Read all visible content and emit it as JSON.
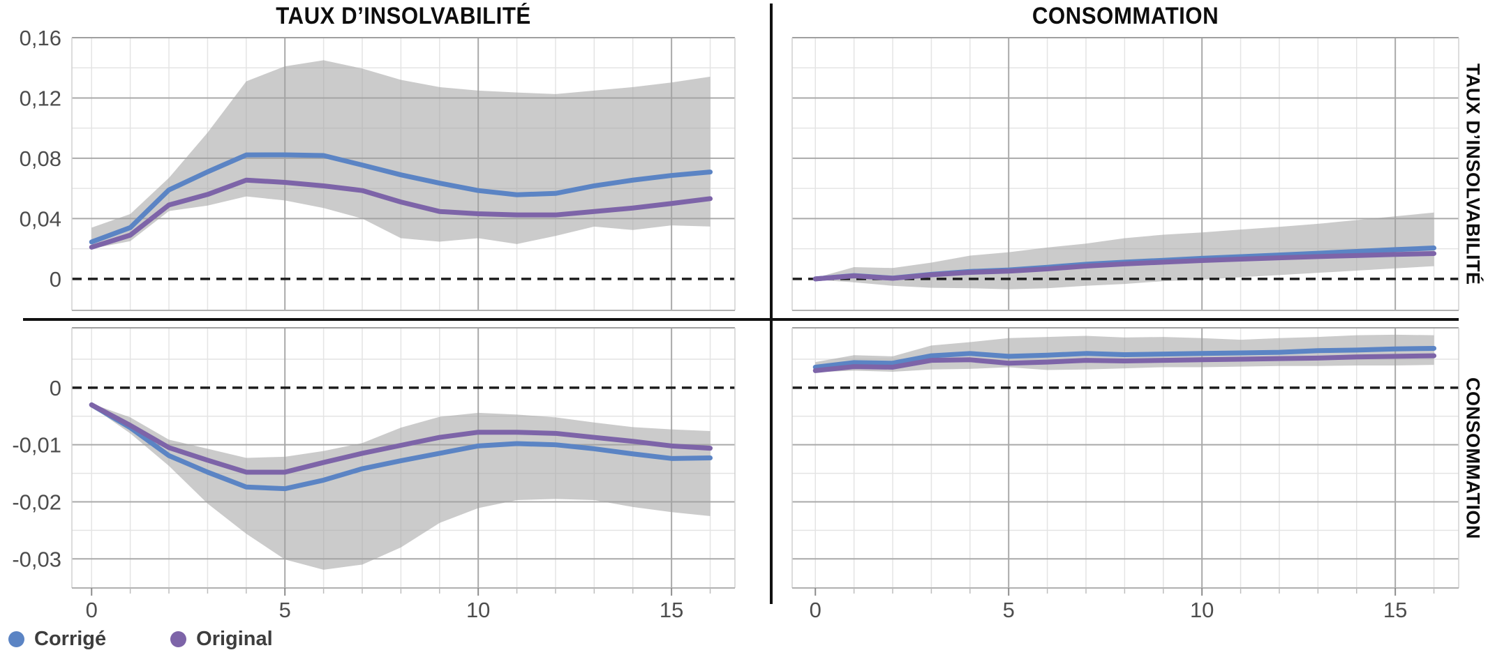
{
  "figure": {
    "columns": [
      "TAUX D’INSOLVABILITÉ",
      "CONSOMMATION"
    ],
    "rows": [
      "TAUX D’INSOLVABILITÉ",
      "CONSOMMATION"
    ]
  },
  "legend": {
    "items": [
      {
        "label": "Corrigé",
        "color": "#5b84c4"
      },
      {
        "label": "Original",
        "color": "#7d64a8"
      }
    ]
  },
  "style": {
    "background": "#ffffff",
    "band_color": "rgba(160,160,160,0.55)",
    "zero_line_color": "#1c1c1c",
    "grid_minor": "#e4e4e4",
    "grid_major": "#a9a9a9",
    "border_top": "#9f9f9f",
    "border_side": "#d0d0d0",
    "axis_color": "#b0b0b0",
    "tick_minor": "#bdbdbd",
    "tick_major": "#8c8c8c",
    "text_color": "#4d4d4d",
    "divider_color": "#111111"
  },
  "chart_data": [
    {
      "id": "taux-shock-taux-response",
      "type": "line",
      "column_title": "TAUX D’INSOLVABILITÉ",
      "row_label": "TAUX D’INSOLVABILITÉ",
      "grid": true,
      "x": [
        0,
        1,
        2,
        3,
        4,
        5,
        6,
        7,
        8,
        9,
        10,
        11,
        12,
        13,
        14,
        15,
        16
      ],
      "series": [
        {
          "name": "Corrigé",
          "color": "#5b84c4",
          "values": [
            0.0245,
            0.034,
            0.059,
            0.071,
            0.0822,
            0.0823,
            0.0818,
            0.0755,
            0.069,
            0.0635,
            0.0586,
            0.0558,
            0.0567,
            0.0617,
            0.0655,
            0.0686,
            0.0709
          ]
        },
        {
          "name": "Original",
          "color": "#7d64a8",
          "values": [
            0.021,
            0.029,
            0.049,
            0.056,
            0.0655,
            0.064,
            0.0617,
            0.0586,
            0.051,
            0.0447,
            0.0432,
            0.0424,
            0.0424,
            0.0447,
            0.047,
            0.05,
            0.0532
          ]
        }
      ],
      "band": {
        "upper": [
          0.034,
          0.043,
          0.067,
          0.097,
          0.131,
          0.141,
          0.145,
          0.1395,
          0.132,
          0.1272,
          0.1249,
          0.1236,
          0.1226,
          0.1249,
          0.1272,
          0.1303,
          0.1341
        ],
        "lower": [
          0.02,
          0.025,
          0.045,
          0.0486,
          0.0547,
          0.052,
          0.047,
          0.04,
          0.027,
          0.0247,
          0.027,
          0.0231,
          0.0285,
          0.0347,
          0.0324,
          0.0355,
          0.0347
        ]
      },
      "xlim": [
        -0.51,
        16.64
      ],
      "ylim": [
        -0.0209,
        0.16
      ],
      "zero_line": 0,
      "y_ticks": [
        {
          "value": 0.16,
          "label": "0,16"
        },
        {
          "value": 0.12,
          "label": "0,12"
        },
        {
          "value": 0.08,
          "label": "0,08"
        },
        {
          "value": 0.04,
          "label": "0,04"
        },
        {
          "value": 0,
          "label": "0"
        }
      ],
      "y_minor": [
        0.14,
        0.1,
        0.06,
        0.02
      ],
      "x_major_ticks": [
        {
          "value": 0,
          "label": "0"
        },
        {
          "value": 5,
          "label": "5"
        },
        {
          "value": 10,
          "label": "10"
        },
        {
          "value": 15,
          "label": "15"
        }
      ],
      "x_grid_major": [
        5,
        10,
        15
      ]
    },
    {
      "id": "conso-shock-taux-response",
      "type": "line",
      "column_title": "CONSOMMATION",
      "row_label": "TAUX D’INSOLVABILITÉ",
      "grid": true,
      "x": [
        0,
        1,
        2,
        3,
        4,
        5,
        6,
        7,
        8,
        9,
        10,
        11,
        12,
        13,
        14,
        15,
        16
      ],
      "series": [
        {
          "name": "Corrigé",
          "color": "#5b84c4",
          "values": [
            0,
            0.0022,
            0.0005,
            0.003,
            0.0049,
            0.0059,
            0.0077,
            0.0097,
            0.0111,
            0.0123,
            0.0136,
            0.0147,
            0.0158,
            0.017,
            0.0182,
            0.0194,
            0.0205
          ]
        },
        {
          "name": "Original",
          "color": "#7d64a8",
          "values": [
            0,
            0.002,
            0.0004,
            0.0027,
            0.0043,
            0.0051,
            0.0066,
            0.0085,
            0.0099,
            0.0111,
            0.0122,
            0.0131,
            0.014,
            0.0148,
            0.0155,
            0.0162,
            0.0168
          ]
        }
      ],
      "band": {
        "upper": [
          0.0006,
          0.0078,
          0.0072,
          0.0108,
          0.0154,
          0.0177,
          0.0208,
          0.0234,
          0.027,
          0.0293,
          0.0308,
          0.0327,
          0.0345,
          0.0365,
          0.039,
          0.0415,
          0.044
        ],
        "lower": [
          -0.0006,
          -0.0023,
          -0.0046,
          -0.0059,
          -0.0062,
          -0.0069,
          -0.0062,
          -0.0046,
          -0.0034,
          -0.0015,
          -0.0005,
          0.0011,
          0.0025,
          0.004,
          0.0055,
          0.007,
          0.0084
        ]
      },
      "xlim": [
        -0.6,
        16.64
      ],
      "ylim": [
        -0.0209,
        0.16
      ],
      "zero_line": 0,
      "y_ticks": [
        {
          "value": 0.16,
          "label": ""
        },
        {
          "value": 0.12,
          "label": ""
        },
        {
          "value": 0.08,
          "label": ""
        },
        {
          "value": 0.04,
          "label": ""
        },
        {
          "value": 0,
          "label": ""
        }
      ],
      "y_minor": [
        0.14,
        0.1,
        0.06,
        0.02
      ],
      "x_major_ticks": [
        {
          "value": 0,
          "label": "0"
        },
        {
          "value": 5,
          "label": "5"
        },
        {
          "value": 10,
          "label": "10"
        },
        {
          "value": 15,
          "label": "15"
        }
      ],
      "x_grid_major": [
        5,
        10,
        15
      ]
    },
    {
      "id": "taux-shock-conso-response",
      "type": "line",
      "column_title": "TAUX D’INSOLVABILITÉ",
      "row_label": "CONSOMMATION",
      "grid": true,
      "x": [
        0,
        1,
        2,
        3,
        4,
        5,
        6,
        7,
        8,
        9,
        10,
        11,
        12,
        13,
        14,
        15,
        16
      ],
      "series": [
        {
          "name": "Corrigé",
          "color": "#5b84c4",
          "values": [
            -0.003,
            -0.007,
            -0.0119,
            -0.0148,
            -0.0174,
            -0.0177,
            -0.0162,
            -0.0142,
            -0.0128,
            -0.0115,
            -0.0102,
            -0.0098,
            -0.01,
            -0.0107,
            -0.0116,
            -0.0124,
            -0.0123
          ]
        },
        {
          "name": "Original",
          "color": "#7d64a8",
          "values": [
            -0.003,
            -0.0066,
            -0.0105,
            -0.0127,
            -0.0148,
            -0.0148,
            -0.0131,
            -0.0115,
            -0.0101,
            -0.0087,
            -0.0078,
            -0.0078,
            -0.008,
            -0.0087,
            -0.0094,
            -0.0102,
            -0.0106
          ]
        }
      ],
      "band": {
        "upper": [
          -0.0028,
          -0.0052,
          -0.0091,
          -0.0107,
          -0.0123,
          -0.0121,
          -0.0111,
          -0.0097,
          -0.007,
          -0.0051,
          -0.0044,
          -0.0047,
          -0.0052,
          -0.0061,
          -0.0069,
          -0.0073,
          -0.0076
        ],
        "lower": [
          -0.0033,
          -0.008,
          -0.0137,
          -0.0203,
          -0.0256,
          -0.0301,
          -0.0319,
          -0.031,
          -0.028,
          -0.0237,
          -0.0211,
          -0.0197,
          -0.0195,
          -0.0197,
          -0.0209,
          -0.0218,
          -0.0225
        ]
      },
      "xlim": [
        -0.51,
        16.64
      ],
      "ylim": [
        -0.0351,
        0.0105
      ],
      "zero_line": 0,
      "y_ticks": [
        {
          "value": 0,
          "label": "0"
        },
        {
          "value": -0.01,
          "label": "-0,01"
        },
        {
          "value": -0.02,
          "label": "-0,02"
        },
        {
          "value": -0.03,
          "label": "-0,03"
        }
      ],
      "y_minor": [
        0.005,
        -0.005,
        -0.015,
        -0.025
      ],
      "x_major_ticks": [
        {
          "value": 0,
          "label": "0"
        },
        {
          "value": 5,
          "label": "5"
        },
        {
          "value": 10,
          "label": "10"
        },
        {
          "value": 15,
          "label": "15"
        }
      ],
      "x_grid_major": [
        5,
        10,
        15
      ]
    },
    {
      "id": "conso-shock-conso-response",
      "type": "line",
      "column_title": "CONSOMMATION",
      "row_label": "CONSOMMATION",
      "grid": true,
      "x": [
        0,
        1,
        2,
        3,
        4,
        5,
        6,
        7,
        8,
        9,
        10,
        11,
        12,
        13,
        14,
        15,
        16
      ],
      "series": [
        {
          "name": "Corrigé",
          "color": "#5b84c4",
          "values": [
            0.0036,
            0.0044,
            0.0043,
            0.0056,
            0.006,
            0.0055,
            0.0057,
            0.006,
            0.0058,
            0.0059,
            0.006,
            0.0061,
            0.0062,
            0.0065,
            0.0066,
            0.0068,
            0.0069
          ]
        },
        {
          "name": "Original",
          "color": "#7d64a8",
          "values": [
            0.003,
            0.0037,
            0.0036,
            0.0048,
            0.0049,
            0.0043,
            0.0045,
            0.0048,
            0.0047,
            0.0048,
            0.0049,
            0.005,
            0.0051,
            0.0052,
            0.0054,
            0.0055,
            0.0056
          ]
        }
      ],
      "band": {
        "upper": [
          0.0045,
          0.0057,
          0.0055,
          0.0074,
          0.008,
          0.0087,
          0.0089,
          0.0091,
          0.0088,
          0.0089,
          0.0087,
          0.0084,
          0.0087,
          0.0089,
          0.0092,
          0.0093,
          0.0092
        ],
        "lower": [
          0.0027,
          0.003,
          0.0028,
          0.0032,
          0.0033,
          0.0036,
          0.0031,
          0.0032,
          0.0034,
          0.0036,
          0.0036,
          0.0037,
          0.0038,
          0.0038,
          0.0039,
          0.0039,
          0.004
        ]
      },
      "xlim": [
        -0.6,
        16.64
      ],
      "ylim": [
        -0.0351,
        0.0105
      ],
      "zero_line": 0,
      "y_ticks": [
        {
          "value": 0,
          "label": ""
        },
        {
          "value": -0.01,
          "label": ""
        },
        {
          "value": -0.02,
          "label": ""
        },
        {
          "value": -0.03,
          "label": ""
        }
      ],
      "y_minor": [
        0.005,
        -0.005,
        -0.015,
        -0.025
      ],
      "x_major_ticks": [
        {
          "value": 0,
          "label": "0"
        },
        {
          "value": 5,
          "label": "5"
        },
        {
          "value": 10,
          "label": "10"
        },
        {
          "value": 15,
          "label": "15"
        }
      ],
      "x_grid_major": [
        5,
        10,
        15
      ]
    }
  ]
}
